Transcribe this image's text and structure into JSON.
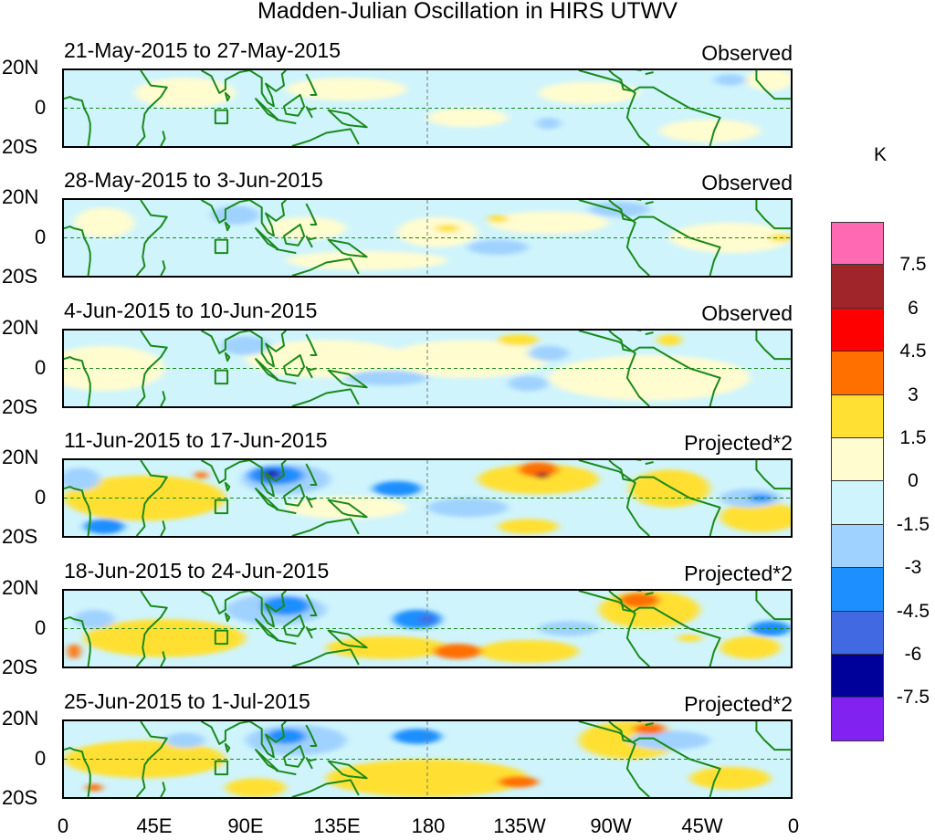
{
  "title": "Madden-Julian Oscillation in HIRS UTWV",
  "unit": "K",
  "lat_labels": [
    "20N",
    "0",
    "20S"
  ],
  "lon_labels": [
    "0",
    "45E",
    "90E",
    "135E",
    "180",
    "135W",
    "90W",
    "45W",
    "0"
  ],
  "colorbar": {
    "labels": [
      "7.5",
      "6",
      "4.5",
      "3",
      "1.5",
      "0",
      "-1.5",
      "-3",
      "-4.5",
      "-6",
      "-7.5"
    ],
    "colors": [
      "#ff69b4",
      "#a0252a",
      "#ff0000",
      "#ff7000",
      "#ffe033",
      "#fffcd0",
      "#cff4fc",
      "#a0d2ff",
      "#1e8fff",
      "#4169e1",
      "#00009a",
      "#8222f0"
    ]
  },
  "panels": [
    {
      "dates": "21-May-2015 to 27-May-2015",
      "type": "Observed",
      "features": [
        [
          60,
          8,
          0.8,
          25,
          8
        ],
        [
          140,
          10,
          0.8,
          30,
          6
        ],
        [
          200,
          -5,
          0.8,
          20,
          5
        ],
        [
          260,
          8,
          0.8,
          25,
          6
        ],
        [
          320,
          -12,
          0.8,
          25,
          6
        ],
        [
          350,
          15,
          0.8,
          12,
          6
        ],
        [
          240,
          -8,
          -2,
          6,
          3
        ],
        [
          330,
          15,
          -2,
          8,
          3
        ]
      ]
    },
    {
      "dates": "28-May-2015 to 3-Jun-2015",
      "type": "Observed",
      "features": [
        [
          20,
          8,
          0.8,
          15,
          8
        ],
        [
          120,
          5,
          0.8,
          20,
          6
        ],
        [
          150,
          -12,
          0.8,
          40,
          5
        ],
        [
          185,
          3,
          0.8,
          20,
          8
        ],
        [
          240,
          8,
          0.8,
          30,
          6
        ],
        [
          330,
          0,
          0.8,
          30,
          8
        ],
        [
          85,
          12,
          -2,
          12,
          5
        ],
        [
          215,
          -5,
          -2,
          15,
          4
        ],
        [
          275,
          15,
          -2,
          15,
          4
        ],
        [
          190,
          5,
          2,
          6,
          2
        ],
        [
          215,
          10,
          2,
          5,
          2
        ],
        [
          355,
          0,
          2,
          6,
          2
        ]
      ]
    },
    {
      "dates": "4-Jun-2015 to 10-Jun-2015",
      "type": "Observed",
      "features": [
        [
          20,
          0,
          0.8,
          30,
          12
        ],
        [
          130,
          5,
          0.8,
          40,
          10
        ],
        [
          200,
          5,
          0.8,
          40,
          10
        ],
        [
          290,
          -5,
          0.8,
          50,
          12
        ],
        [
          90,
          12,
          -2,
          12,
          5
        ],
        [
          160,
          -5,
          -2,
          20,
          4
        ],
        [
          230,
          -8,
          -2,
          10,
          4
        ],
        [
          240,
          8,
          -2,
          10,
          4
        ],
        [
          225,
          15,
          2,
          10,
          3
        ],
        [
          300,
          15,
          2,
          6,
          3
        ]
      ]
    },
    {
      "dates": "11-Jun-2015 to 17-Jun-2015",
      "type": "Projected*2",
      "features": [
        [
          40,
          0,
          2,
          40,
          12
        ],
        [
          140,
          -5,
          0.8,
          30,
          6
        ],
        [
          235,
          10,
          2,
          30,
          8
        ],
        [
          300,
          5,
          2,
          20,
          10
        ],
        [
          345,
          -10,
          2,
          20,
          8
        ],
        [
          230,
          -15,
          2,
          15,
          4
        ],
        [
          110,
          10,
          -2,
          22,
          8
        ],
        [
          105,
          12,
          -4,
          14,
          5
        ],
        [
          103,
          12,
          -6,
          6,
          3
        ],
        [
          103,
          13,
          -7,
          3,
          2
        ],
        [
          20,
          -15,
          -4,
          10,
          4
        ],
        [
          8,
          10,
          -2,
          10,
          6
        ],
        [
          165,
          5,
          -4,
          12,
          4
        ],
        [
          200,
          -5,
          -2,
          20,
          5
        ],
        [
          340,
          0,
          -2,
          15,
          5
        ],
        [
          345,
          0,
          -4,
          6,
          2
        ],
        [
          235,
          15,
          4,
          10,
          4
        ],
        [
          237,
          12,
          6,
          3,
          2
        ],
        [
          68,
          12,
          4,
          3,
          2
        ]
      ]
    },
    {
      "dates": "18-Jun-2015 to 24-Jun-2015",
      "type": "Projected*2",
      "features": [
        [
          50,
          -5,
          2,
          40,
          10
        ],
        [
          160,
          -10,
          2,
          30,
          6
        ],
        [
          230,
          -12,
          2,
          25,
          6
        ],
        [
          290,
          10,
          2,
          25,
          10
        ],
        [
          340,
          -10,
          2,
          15,
          6
        ],
        [
          105,
          10,
          -2,
          25,
          8
        ],
        [
          110,
          12,
          -4,
          12,
          5
        ],
        [
          175,
          5,
          -4,
          12,
          5
        ],
        [
          180,
          5,
          -6,
          4,
          2
        ],
        [
          250,
          0,
          -2,
          15,
          4
        ],
        [
          350,
          0,
          -4,
          10,
          4
        ],
        [
          15,
          5,
          -2,
          10,
          5
        ],
        [
          195,
          -12,
          4,
          12,
          4
        ],
        [
          285,
          15,
          4,
          10,
          4
        ],
        [
          5,
          -12,
          4,
          3,
          4
        ],
        [
          310,
          -5,
          2,
          6,
          2
        ]
      ]
    },
    {
      "dates": "25-Jun-2015 to 1-Jul-2015",
      "type": "Projected*2",
      "features": [
        [
          40,
          0,
          2,
          40,
          10
        ],
        [
          180,
          -10,
          2,
          50,
          10
        ],
        [
          280,
          10,
          2,
          25,
          10
        ],
        [
          330,
          -10,
          2,
          20,
          6
        ],
        [
          115,
          10,
          -2,
          25,
          8
        ],
        [
          110,
          12,
          -4,
          10,
          4
        ],
        [
          175,
          12,
          -4,
          12,
          4
        ],
        [
          60,
          10,
          -2,
          10,
          4
        ],
        [
          300,
          10,
          -2,
          20,
          5
        ],
        [
          225,
          -12,
          4,
          10,
          3
        ],
        [
          290,
          16,
          4,
          8,
          3
        ],
        [
          15,
          -15,
          4,
          4,
          2
        ],
        [
          95,
          -15,
          2,
          15,
          5
        ]
      ]
    }
  ]
}
